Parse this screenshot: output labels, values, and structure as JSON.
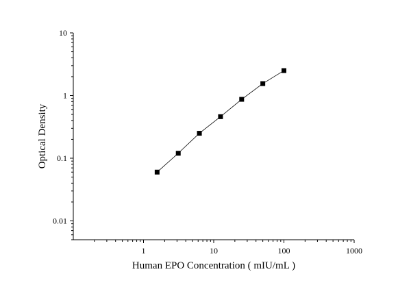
{
  "chart_data": {
    "type": "scatter",
    "title": "",
    "xlabel": "Human EPO Concentration ( mIU/mL )",
    "ylabel": "Optical Density",
    "x_scale": "log",
    "y_scale": "log",
    "xlim": [
      0.1,
      1000
    ],
    "ylim": [
      0.005,
      10
    ],
    "x_ticks": [
      1,
      10,
      100,
      1000
    ],
    "x_tick_labels": [
      "1",
      "10",
      "100",
      "1000"
    ],
    "y_ticks": [
      0.01,
      0.1,
      1,
      10
    ],
    "y_tick_labels": [
      "0.01",
      "0.1",
      "1",
      "10"
    ],
    "grid": false,
    "legend": "none",
    "marker": "square",
    "connect_points": true,
    "marker_color": "#000000",
    "line_color": "#000000",
    "series": [
      {
        "x": [
          1.5625,
          3.125,
          6.25,
          12.5,
          25,
          50,
          100
        ],
        "y": [
          0.06,
          0.12,
          0.25,
          0.46,
          0.87,
          1.55,
          2.5
        ]
      }
    ]
  }
}
